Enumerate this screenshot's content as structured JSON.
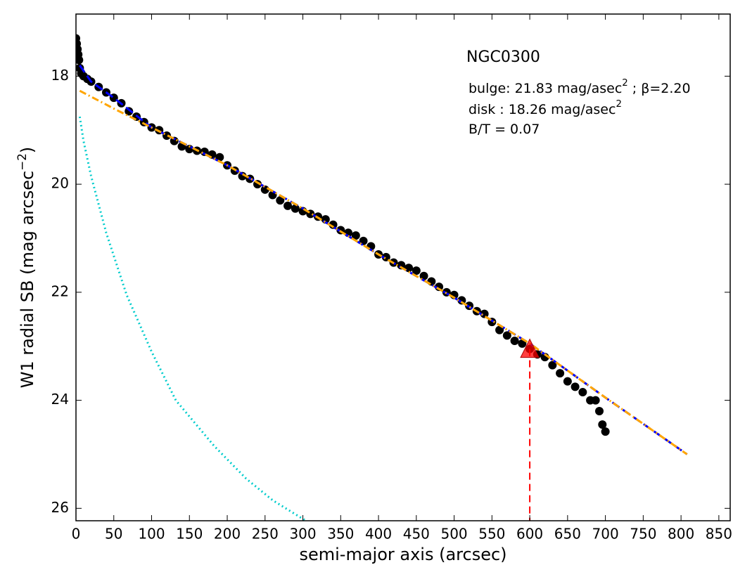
{
  "chart_data": {
    "type": "scatter",
    "xlabel": "semi-major axis (arcsec)",
    "ylabel": {
      "text": "W1 radial SB (mag arcsec",
      "sup": "−2",
      "tail": ")"
    },
    "annotations": [
      {
        "text": "NGC0300"
      },
      {
        "text": "bulge: 21.83 mag/asec",
        "sup": "2",
        "tail": " ; β=2.20"
      },
      {
        "text": "disk  : 18.26 mag/asec",
        "sup": "2"
      },
      {
        "text": "B/T = 0.07"
      }
    ],
    "xlim": [
      0,
      865
    ],
    "ylim": [
      26.23,
      16.85
    ],
    "xticks": [
      0,
      50,
      100,
      150,
      200,
      250,
      300,
      350,
      400,
      450,
      500,
      550,
      600,
      650,
      700,
      750,
      800,
      850
    ],
    "yticks": [
      18,
      20,
      22,
      24,
      26
    ],
    "series": [
      {
        "color": "#000000",
        "marker": "circle",
        "x": [
          0,
          1,
          2,
          3,
          4,
          5,
          7,
          10,
          15,
          20,
          30,
          40,
          50,
          60,
          70,
          80,
          90,
          100,
          110,
          120,
          130,
          140,
          150,
          160,
          170,
          180,
          190,
          200,
          210,
          220,
          230,
          240,
          250,
          260,
          270,
          280,
          290,
          300,
          310,
          320,
          330,
          340,
          350,
          360,
          370,
          380,
          390,
          400,
          410,
          420,
          430,
          440,
          450,
          460,
          470,
          480,
          490,
          500,
          510,
          520,
          530,
          540,
          550,
          560,
          570,
          580,
          590,
          600,
          610,
          620,
          630,
          640,
          650,
          660,
          670,
          680,
          687,
          692,
          696,
          700
        ],
        "values": [
          17.3,
          17.4,
          17.5,
          17.6,
          17.7,
          17.85,
          17.95,
          18.0,
          18.05,
          18.1,
          18.2,
          18.3,
          18.4,
          18.5,
          18.65,
          18.75,
          18.85,
          18.95,
          19.0,
          19.1,
          19.2,
          19.3,
          19.35,
          19.38,
          19.4,
          19.45,
          19.5,
          19.65,
          19.75,
          19.85,
          19.9,
          20.0,
          20.1,
          20.2,
          20.3,
          20.4,
          20.45,
          20.5,
          20.55,
          20.6,
          20.65,
          20.75,
          20.85,
          20.9,
          20.95,
          21.05,
          21.15,
          21.3,
          21.35,
          21.45,
          21.5,
          21.55,
          21.6,
          21.7,
          21.8,
          21.9,
          22.0,
          22.05,
          22.15,
          22.25,
          22.35,
          22.4,
          22.55,
          22.7,
          22.8,
          22.9,
          22.95,
          23.05,
          23.15,
          23.2,
          23.35,
          23.5,
          23.65,
          23.75,
          23.85,
          24.0,
          24.0,
          24.2,
          24.45,
          24.58
        ]
      },
      {
        "color": "#0000ff",
        "line": "dashed",
        "x": [
          5,
          20,
          50,
          100,
          200,
          300,
          400,
          500,
          600,
          700,
          808
        ],
        "values": [
          17.8,
          18.1,
          18.4,
          18.95,
          19.65,
          20.45,
          21.3,
          22.1,
          22.95,
          23.95,
          25.0
        ]
      },
      {
        "color": "#ffa500",
        "line": "dashdot",
        "x": [
          5,
          50,
          100,
          200,
          300,
          400,
          500,
          600,
          700,
          808
        ],
        "values": [
          18.27,
          18.6,
          18.95,
          19.65,
          20.45,
          21.3,
          22.1,
          22.95,
          23.95,
          25.0
        ]
      },
      {
        "color": "#00cccc",
        "line": "dotted",
        "x": [
          5,
          10,
          20,
          40,
          67,
          100,
          132,
          183,
          225,
          260,
          304
        ],
        "values": [
          18.75,
          19.2,
          19.85,
          20.9,
          22.05,
          23.1,
          24.0,
          24.85,
          25.45,
          25.85,
          26.23
        ]
      },
      {
        "color": "#ff0000",
        "marker": "triangle",
        "drop_line": true,
        "x": [
          600
        ],
        "values": [
          23.05
        ]
      }
    ]
  }
}
